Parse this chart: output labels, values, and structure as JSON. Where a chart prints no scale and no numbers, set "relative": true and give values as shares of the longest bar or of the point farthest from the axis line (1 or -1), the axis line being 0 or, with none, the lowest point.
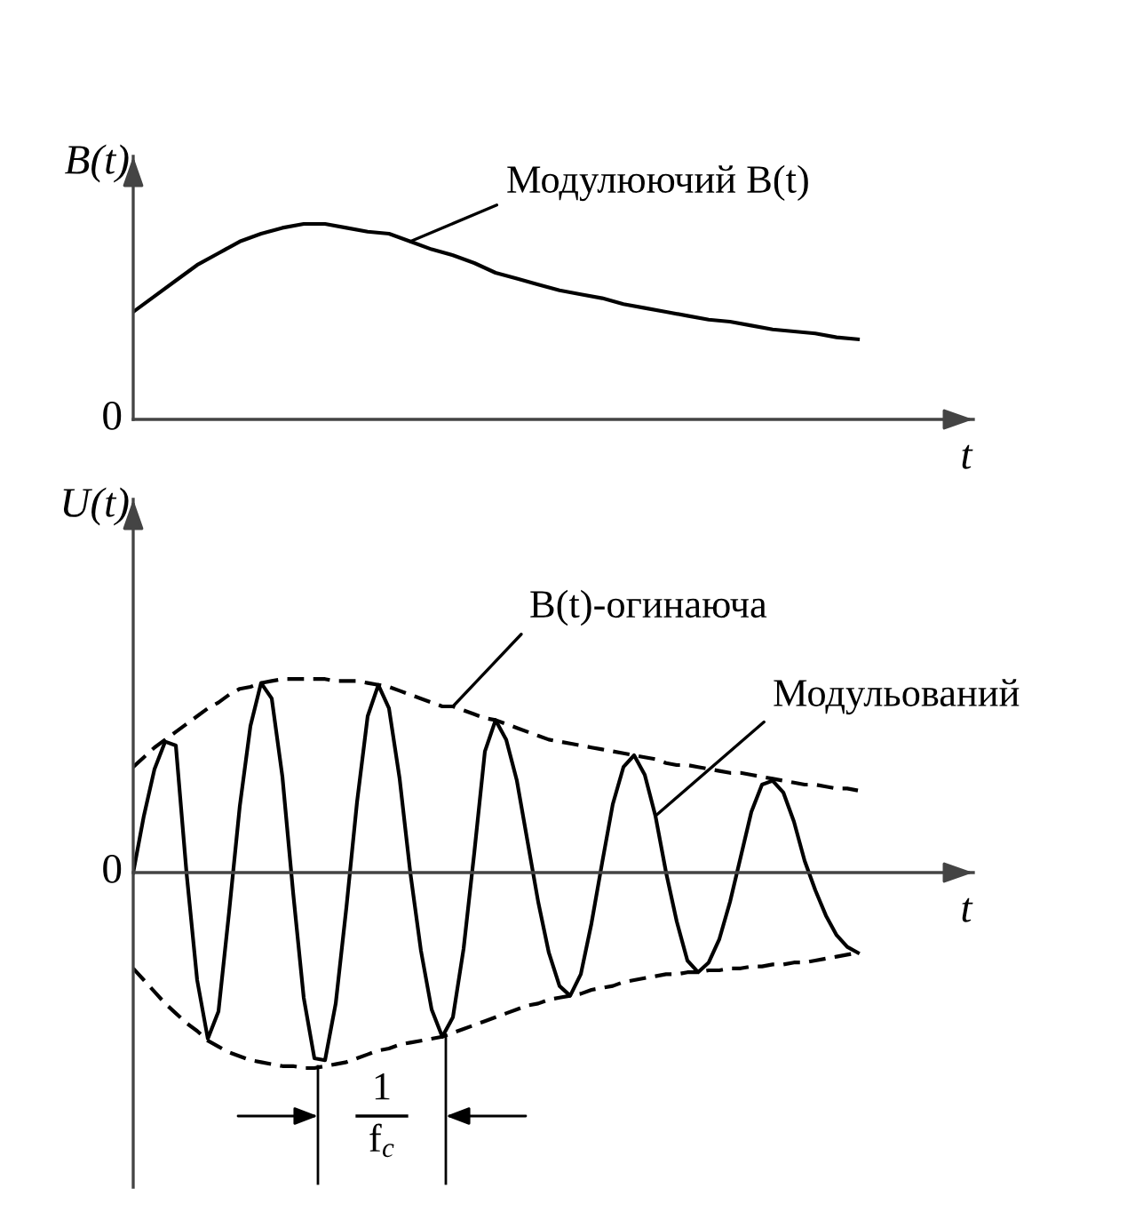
{
  "chart_data": [
    {
      "type": "line",
      "relative": true,
      "ylabel": "B(t)",
      "xlabel": "t",
      "line_style": "solid",
      "categories": [
        null,
        null,
        null,
        null,
        null,
        null,
        null,
        null,
        null,
        null,
        null,
        null,
        null,
        null,
        null,
        null,
        null,
        null,
        null,
        null,
        null,
        null,
        null,
        null,
        null,
        null,
        null,
        null,
        null,
        null,
        null,
        null,
        null,
        null,
        null
      ],
      "series": [
        {
          "name": "Модулюючий B(t)",
          "color": "#000000",
          "values": [
            0.55,
            0.63,
            0.71,
            0.79,
            0.85,
            0.91,
            0.95,
            0.98,
            1,
            1,
            0.98,
            0.96,
            0.95,
            0.91,
            0.87,
            0.84,
            0.8,
            0.75,
            0.72,
            0.69,
            0.66,
            0.64,
            0.62,
            0.59,
            0.57,
            0.55,
            0.53,
            0.51,
            0.5,
            0.48,
            0.46,
            0.45,
            0.44,
            0.42,
            0.41
          ]
        }
      ],
      "annotations": [
        "0"
      ]
    },
    {
      "type": "line",
      "relative": true,
      "ylabel": "U(t)",
      "xlabel": "t",
      "categories": [
        null,
        null,
        null,
        null,
        null,
        null,
        null,
        null,
        null,
        null,
        null,
        null,
        null,
        null,
        null,
        null,
        null,
        null,
        null,
        null,
        null,
        null,
        null,
        null,
        null,
        null,
        null,
        null,
        null,
        null,
        null,
        null,
        null,
        null,
        null,
        null,
        null,
        null,
        null,
        null,
        null,
        null,
        null,
        null,
        null,
        null,
        null,
        null,
        null,
        null,
        null,
        null,
        null,
        null,
        null,
        null,
        null,
        null,
        null,
        null,
        null,
        null,
        null,
        null,
        null,
        null,
        null,
        null,
        null
      ],
      "series": [
        {
          "name": "Модульований",
          "color": "#000000",
          "line_style": "solid",
          "values": [
            0,
            0.29,
            0.53,
            0.67,
            0.65,
            0,
            -0.55,
            -0.85,
            -0.71,
            -0.2,
            0.34,
            0.75,
            0.97,
            0.89,
            0.49,
            -0.1,
            -0.64,
            -0.95,
            -0.96,
            -0.67,
            -0.18,
            0.36,
            0.8,
            0.96,
            0.84,
            0.48,
            0,
            -0.4,
            -0.7,
            -0.84,
            -0.74,
            -0.39,
            0.1,
            0.62,
            0.78,
            0.68,
            0.47,
            0.16,
            -0.15,
            -0.41,
            -0.58,
            -0.63,
            -0.52,
            -0.26,
            0.05,
            0.35,
            0.54,
            0.6,
            0.5,
            0.29,
            0,
            -0.25,
            -0.45,
            -0.51,
            -0.46,
            -0.34,
            -0.15,
            0.08,
            0.31,
            0.45,
            0.47,
            0.41,
            0.26,
            0.06,
            -0.09,
            -0.22,
            -0.32,
            -0.38,
            -0.41
          ]
        },
        {
          "name": "B(t)-огинаюча",
          "color": "#000000",
          "line_style": "dashed",
          "values": [
            0.54,
            0.59,
            0.64,
            0.68,
            0.72,
            0.76,
            0.8,
            0.84,
            0.87,
            0.91,
            0.94,
            0.95,
            0.97,
            0.98,
            0.99,
            0.99,
            0.99,
            0.99,
            0.99,
            0.98,
            0.98,
            0.98,
            0.97,
            0.96,
            0.95,
            0.93,
            0.91,
            0.89,
            0.87,
            0.85,
            0.85,
            0.83,
            0.81,
            0.79,
            0.78,
            0.76,
            0.74,
            0.72,
            0.7,
            0.68,
            0.67,
            0.66,
            0.65,
            0.64,
            0.63,
            0.62,
            0.61,
            0.6,
            0.59,
            0.58,
            0.56,
            0.55,
            0.55,
            0.54,
            0.53,
            0.52,
            0.51,
            0.51,
            0.5,
            0.49,
            0.48,
            0.47,
            0.46,
            0.45,
            0.45,
            0.44,
            0.43,
            0.43,
            0.42
          ]
        },
        {
          "color": "#000000",
          "line_style": "dashed",
          "values": [
            -0.49,
            -0.55,
            -0.61,
            -0.67,
            -0.72,
            -0.77,
            -0.81,
            -0.86,
            -0.89,
            -0.92,
            -0.94,
            -0.96,
            -0.97,
            -0.98,
            -0.99,
            -0.99,
            -1,
            -1,
            -0.99,
            -0.98,
            -0.97,
            -0.95,
            -0.93,
            -0.91,
            -0.9,
            -0.88,
            -0.87,
            -0.86,
            -0.85,
            -0.84,
            -0.82,
            -0.8,
            -0.78,
            -0.76,
            -0.74,
            -0.72,
            -0.7,
            -0.68,
            -0.67,
            -0.65,
            -0.64,
            -0.63,
            -0.62,
            -0.6,
            -0.59,
            -0.58,
            -0.56,
            -0.55,
            -0.54,
            -0.53,
            -0.52,
            -0.52,
            -0.51,
            -0.51,
            -0.5,
            -0.5,
            -0.49,
            -0.49,
            -0.48,
            -0.48,
            -0.47,
            -0.47,
            -0.46,
            -0.46,
            -0.45,
            -0.44,
            -0.43,
            -0.42,
            -0.41
          ]
        }
      ],
      "annotations": [
        "0",
        "1\nf$_{c}$"
      ]
    }
  ]
}
